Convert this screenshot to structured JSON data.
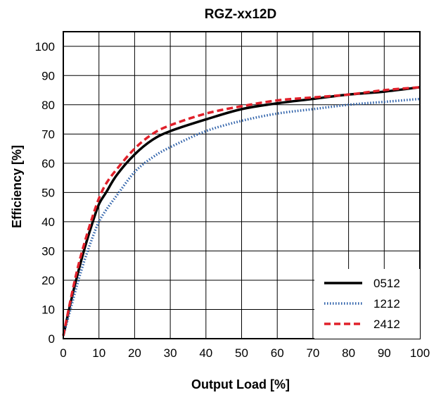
{
  "chart_data": {
    "type": "line",
    "title": "RGZ-xx12D",
    "xlabel": "Output Load [%]",
    "ylabel": "Efficiency [%]",
    "xlim": [
      0,
      100
    ],
    "ylim": [
      0,
      105
    ],
    "xticks": [
      0,
      10,
      20,
      30,
      40,
      50,
      60,
      70,
      80,
      90,
      100
    ],
    "yticks": [
      0,
      10,
      20,
      30,
      40,
      50,
      60,
      70,
      80,
      90,
      100
    ],
    "grid": true,
    "legend_position": "bottom-right",
    "series": [
      {
        "name": "0512",
        "color": "#000000",
        "style": "solid",
        "x": [
          0,
          2,
          4,
          6,
          8,
          10,
          12,
          15,
          20,
          25,
          30,
          40,
          50,
          60,
          70,
          80,
          90,
          100
        ],
        "y": [
          1,
          12,
          22,
          31,
          39,
          46,
          50,
          56,
          63,
          68,
          71,
          75,
          78.5,
          80.5,
          82,
          83.5,
          84.5,
          86
        ]
      },
      {
        "name": "1212",
        "color": "#2a5ea8",
        "style": "dotted",
        "x": [
          0,
          2,
          4,
          6,
          8,
          10,
          12,
          15,
          20,
          25,
          30,
          40,
          50,
          60,
          70,
          80,
          90,
          100
        ],
        "y": [
          1,
          10,
          19,
          27,
          34,
          40,
          44,
          49,
          57,
          62,
          65.5,
          71,
          74.5,
          77,
          78.5,
          80,
          81,
          82
        ]
      },
      {
        "name": "2412",
        "color": "#e0202a",
        "style": "dashed",
        "x": [
          0,
          2,
          4,
          6,
          8,
          10,
          12,
          15,
          20,
          25,
          30,
          40,
          50,
          60,
          70,
          80,
          90,
          100
        ],
        "y": [
          1,
          13,
          24,
          33,
          41,
          48,
          53,
          58,
          65,
          70,
          73,
          77,
          79.5,
          81.5,
          82.5,
          83.5,
          85,
          86
        ]
      }
    ]
  }
}
